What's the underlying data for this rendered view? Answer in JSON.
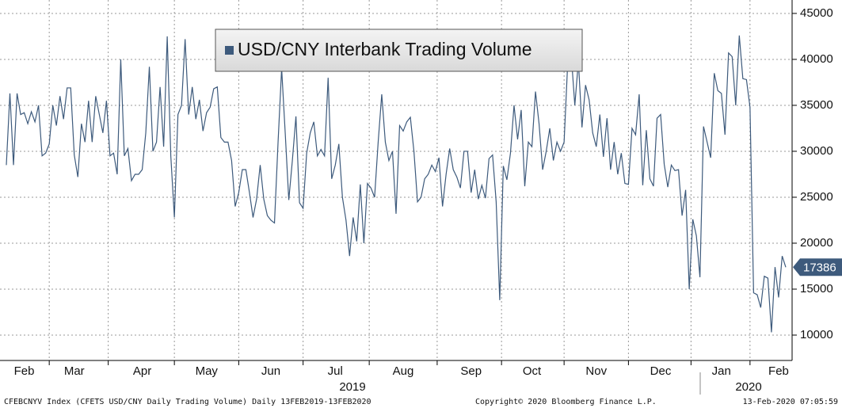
{
  "chart_data": {
    "type": "line",
    "series": [
      {
        "name": "USD/CNY Interbank Trading Volume",
        "color": "#3d5a7c",
        "values": [
          28500,
          36300,
          28500,
          36300,
          34000,
          34200,
          33000,
          34300,
          33200,
          35000,
          29500,
          29800,
          30800,
          35000,
          32800,
          36000,
          33500,
          36900,
          36900,
          29600,
          27200,
          33000,
          31000,
          35500,
          31000,
          36000,
          34000,
          32000,
          35500,
          29500,
          29800,
          27500,
          40000,
          29500,
          30300,
          26800,
          27500,
          27500,
          28000,
          32000,
          39200,
          30000,
          31000,
          37000,
          30500,
          42500,
          29500,
          22800,
          34000,
          35000,
          42200,
          34000,
          37000,
          33500,
          35600,
          32200,
          34200,
          34800,
          36800,
          37000,
          31500,
          31000,
          31000,
          29000,
          24000,
          25500,
          28000,
          28000,
          25500,
          22800,
          24800,
          28500,
          24800,
          23000,
          22500,
          22200,
          31000,
          39000,
          32000,
          24700,
          29000,
          33800,
          24400,
          23800,
          29800,
          32000,
          33200,
          29500,
          30200,
          29500,
          38000,
          27000,
          28500,
          30800,
          25000,
          22500,
          18600,
          22800,
          20200,
          26400,
          20000,
          26500,
          26000,
          25000,
          31000,
          36200,
          31000,
          29000,
          30000,
          23200,
          32800,
          32200,
          33200,
          33700,
          30000,
          24500,
          25000,
          27000,
          27500,
          28500,
          27800,
          29300,
          24000,
          27500,
          30300,
          28000,
          27200,
          26000,
          30000,
          30000,
          25500,
          28000,
          24800,
          26300,
          24900,
          29200,
          29600,
          24500,
          13800,
          28400,
          26900,
          29800,
          35000,
          31300,
          34500,
          26200,
          31000,
          30500,
          36500,
          33000,
          28000,
          30000,
          32500,
          29000,
          31000,
          30000,
          31000,
          39500,
          40500,
          35000,
          39800,
          32600,
          37200,
          35600,
          32000,
          30500,
          34000,
          29400,
          33600,
          28000,
          31000,
          27500,
          29800,
          26500,
          26400,
          32500,
          31800,
          36200,
          26300,
          32300,
          27000,
          26200,
          33600,
          34000,
          28600,
          26100,
          28500,
          27900,
          28000,
          23000,
          25800,
          15000,
          22600,
          20800,
          16300,
          32700,
          31000,
          29300,
          38500,
          36600,
          36300,
          31800,
          40700,
          40300,
          35000,
          42600,
          37900,
          37800,
          34800,
          14600,
          14400,
          13000,
          16400,
          16200,
          10300,
          17400,
          14100,
          18600,
          17386
        ]
      }
    ],
    "categories": [
      null,
      null,
      null,
      null,
      null,
      "Feb",
      null,
      null,
      null,
      null,
      null,
      null,
      null,
      null,
      null,
      null,
      null,
      null,
      null,
      "Mar",
      null,
      null,
      null,
      null,
      null,
      null,
      null,
      null,
      null,
      null,
      null,
      null,
      null,
      null,
      null,
      null,
      null,
      null,
      "Apr",
      null,
      null,
      null,
      null,
      null,
      null,
      null,
      null,
      null,
      null,
      null,
      null,
      null,
      null,
      null,
      null,
      null,
      "May",
      null,
      null,
      null,
      null,
      null,
      null,
      null,
      null,
      null,
      null,
      null,
      null,
      null,
      null,
      null,
      null,
      null,
      "Jun",
      null,
      null,
      null,
      null,
      null,
      null,
      null,
      null,
      null,
      null,
      null,
      null,
      null,
      null,
      null,
      null,
      null,
      "Jul",
      null,
      null,
      null,
      null,
      null,
      null,
      null,
      null,
      null,
      null,
      null,
      null,
      null,
      null,
      null,
      null,
      null,
      null,
      "Aug",
      null,
      null,
      null,
      null,
      null,
      null,
      null,
      null,
      null,
      null,
      null,
      null,
      null,
      null,
      null,
      null,
      null,
      null,
      "Sep",
      null,
      null,
      null,
      null,
      null,
      null,
      null,
      null,
      null,
      null,
      null,
      null,
      null,
      null,
      null,
      null,
      "Oct",
      null,
      null,
      null,
      null,
      null,
      null,
      null,
      null,
      null,
      null,
      null,
      null,
      null,
      null,
      null,
      null,
      null,
      "Nov",
      null,
      null,
      null,
      null,
      null,
      null,
      null,
      null,
      null,
      null,
      null,
      null,
      null,
      null,
      null,
      null,
      null,
      "Dec",
      null,
      null,
      null,
      null,
      null,
      null,
      null,
      null,
      null,
      null,
      null,
      null,
      null,
      null,
      null,
      null,
      "Jan",
      null,
      null,
      null,
      null,
      null,
      null,
      null,
      null,
      null,
      null,
      null,
      null,
      null,
      null,
      null,
      "Feb",
      null,
      null
    ],
    "year_labels": [
      "2019",
      "2020"
    ],
    "ylim": [
      7240,
      46030
    ],
    "yticks": [
      10000,
      15000,
      20000,
      25000,
      30000,
      35000,
      40000,
      45000
    ],
    "grid": true
  },
  "footer": {
    "source": "CFEBCNYV Index (CFETS USD/CNY Daily Trading Volume)  Daily 13FEB2019-13FEB2020",
    "copyright": "Copyright© 2020 Bloomberg Finance L.P.",
    "timestamp": "13-Feb-2020 07:05:59"
  }
}
